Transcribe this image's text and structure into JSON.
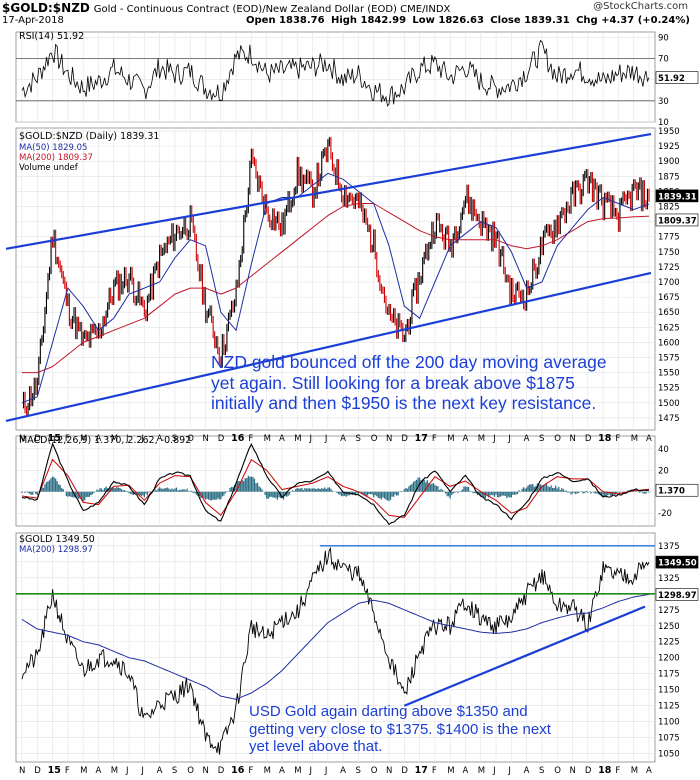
{
  "header": {
    "symbol": "$GOLD:$NZD",
    "description": "Gold - Continuous Contract (EOD)/New Zealand Dollar (EOD) CME/INDX",
    "date": "17-Apr-2018",
    "open": "Open 1838.76",
    "high": "High 1842.99",
    "low": "Low 1826.63",
    "close": "Close 1839.31",
    "chg": "Chg +4.37 (+0.24%)",
    "credit": "@StockCharts.com"
  },
  "annotations": {
    "nzd_lines": [
      "NZD gold bounced off the 200 day moving average",
      "yet again. Still looking for a break above $1875",
      "initially and then $1950 is the next key resistance."
    ],
    "usd_lines": [
      "USD Gold again darting above $1350 and",
      "getting very close to $1375. $1400 is the next",
      "yet level above that."
    ]
  },
  "colors": {
    "price": "#000000",
    "up_bar": "#000000",
    "down_bar": "#cc0000",
    "ma50": "#1f2fa3",
    "ma200": "#c0182a",
    "ma200_usd": "#1f2fa3",
    "trendline": "#1b3fd6",
    "support_line": "#1e8a1e",
    "resistance_line": "#2a6fd6",
    "macd_line": "#000000",
    "macd_signal": "#cc0000",
    "macd_hist": "#2f6f86",
    "grid": "#e2e2e2"
  },
  "chart_data": [
    {
      "type": "line",
      "panel": "rsi",
      "legend": "RSI(14) 51.92",
      "current_value": 51.92,
      "yticks": [
        10,
        30,
        50,
        70,
        90
      ],
      "ylim": [
        10,
        95
      ],
      "reference_lines": [
        30,
        70
      ],
      "x": [
        "2014-11",
        "2014-12",
        "2015-01",
        "2015-02",
        "2015-03",
        "2015-04",
        "2015-05",
        "2015-06",
        "2015-07",
        "2015-08",
        "2015-09",
        "2015-10",
        "2015-11",
        "2015-12",
        "2016-01",
        "2016-02",
        "2016-03",
        "2016-04",
        "2016-05",
        "2016-06",
        "2016-07",
        "2016-08",
        "2016-09",
        "2016-10",
        "2016-11",
        "2016-12",
        "2017-01",
        "2017-02",
        "2017-03",
        "2017-04",
        "2017-05",
        "2017-06",
        "2017-07",
        "2017-08",
        "2017-09",
        "2017-10",
        "2017-11",
        "2017-12",
        "2018-01",
        "2018-02",
        "2018-03",
        "2018-04"
      ],
      "values": [
        40,
        52,
        78,
        55,
        42,
        48,
        60,
        50,
        40,
        62,
        55,
        58,
        42,
        38,
        72,
        75,
        55,
        58,
        60,
        62,
        66,
        50,
        55,
        40,
        35,
        42,
        60,
        65,
        52,
        62,
        48,
        42,
        45,
        58,
        78,
        52,
        60,
        55,
        48,
        56,
        58,
        52
      ]
    },
    {
      "type": "line",
      "panel": "nzd_price",
      "legend": [
        "$GOLD:$NZD (Daily) 1839.31",
        "MA(50) 1829.05",
        "MA(200) 1809.37",
        "Volume undef"
      ],
      "ylim": [
        1455,
        1955
      ],
      "yticks": [
        1475,
        1500,
        1525,
        1550,
        1575,
        1600,
        1625,
        1650,
        1675,
        1700,
        1725,
        1750,
        1775,
        1800,
        1825,
        1850,
        1875,
        1900,
        1925,
        1950
      ],
      "last_price_label": "1839.31",
      "ma200_label": "1809.37",
      "x": [
        "2014-11",
        "2014-12",
        "2015-01",
        "2015-02",
        "2015-03",
        "2015-04",
        "2015-05",
        "2015-06",
        "2015-07",
        "2015-08",
        "2015-09",
        "2015-10",
        "2015-11",
        "2015-12",
        "2016-01",
        "2016-02",
        "2016-03",
        "2016-04",
        "2016-05",
        "2016-06",
        "2016-07",
        "2016-08",
        "2016-09",
        "2016-10",
        "2016-11",
        "2016-12",
        "2017-01",
        "2017-02",
        "2017-03",
        "2017-04",
        "2017-05",
        "2017-06",
        "2017-07",
        "2017-08",
        "2017-09",
        "2017-10",
        "2017-11",
        "2017-12",
        "2018-01",
        "2018-02",
        "2018-03",
        "2018-04"
      ],
      "series": [
        {
          "name": "$GOLD:$NZD",
          "values": [
            1490,
            1530,
            1780,
            1660,
            1600,
            1615,
            1690,
            1710,
            1650,
            1740,
            1780,
            1800,
            1660,
            1580,
            1680,
            1900,
            1820,
            1790,
            1880,
            1850,
            1920,
            1850,
            1830,
            1760,
            1640,
            1610,
            1710,
            1800,
            1760,
            1840,
            1800,
            1770,
            1680,
            1680,
            1760,
            1800,
            1840,
            1870,
            1830,
            1810,
            1850,
            1839
          ]
        },
        {
          "name": "MA(50)",
          "values": [
            1500,
            1510,
            1600,
            1690,
            1660,
            1620,
            1640,
            1680,
            1690,
            1700,
            1740,
            1770,
            1760,
            1650,
            1620,
            1730,
            1830,
            1840,
            1840,
            1860,
            1880,
            1870,
            1850,
            1830,
            1760,
            1660,
            1640,
            1700,
            1760,
            1780,
            1800,
            1790,
            1750,
            1690,
            1700,
            1760,
            1790,
            1820,
            1840,
            1830,
            1820,
            1829
          ]
        },
        {
          "name": "MA(200)",
          "values": [
            1550,
            1550,
            1560,
            1580,
            1600,
            1610,
            1620,
            1630,
            1640,
            1660,
            1680,
            1690,
            1690,
            1680,
            1690,
            1710,
            1730,
            1750,
            1770,
            1790,
            1810,
            1825,
            1830,
            1830,
            1815,
            1800,
            1785,
            1775,
            1770,
            1770,
            1770,
            1770,
            1760,
            1755,
            1760,
            1770,
            1785,
            1800,
            1805,
            1806,
            1808,
            1809
          ]
        }
      ],
      "trendlines": [
        {
          "points": [
            [
              "2014-11",
              1755
            ],
            [
              "2018-04",
              1945
            ]
          ]
        },
        {
          "points": [
            [
              "2014-11",
              1470
            ],
            [
              "2018-04",
              1715
            ]
          ]
        }
      ]
    },
    {
      "type": "line",
      "panel": "macd",
      "legend": "MACD(12,26,9) 1.370, 2.262, -0.892",
      "yticks": [
        -20,
        0,
        20,
        40
      ],
      "ylim": [
        -32,
        52
      ],
      "current_label": "1.370",
      "x": [
        "2014-11",
        "2014-12",
        "2015-01",
        "2015-02",
        "2015-03",
        "2015-04",
        "2015-05",
        "2015-06",
        "2015-07",
        "2015-08",
        "2015-09",
        "2015-10",
        "2015-11",
        "2015-12",
        "2016-01",
        "2016-02",
        "2016-03",
        "2016-04",
        "2016-05",
        "2016-06",
        "2016-07",
        "2016-08",
        "2016-09",
        "2016-10",
        "2016-11",
        "2016-12",
        "2017-01",
        "2017-02",
        "2017-03",
        "2017-04",
        "2017-05",
        "2017-06",
        "2017-07",
        "2017-08",
        "2017-09",
        "2017-10",
        "2017-11",
        "2017-12",
        "2018-01",
        "2018-02",
        "2018-03",
        "2018-04"
      ],
      "series": [
        {
          "name": "MACD",
          "values": [
            -5,
            -8,
            45,
            10,
            -18,
            -10,
            10,
            5,
            -12,
            12,
            18,
            15,
            -18,
            -28,
            8,
            45,
            15,
            -5,
            8,
            10,
            18,
            0,
            -2,
            -12,
            -30,
            -22,
            8,
            20,
            0,
            15,
            -5,
            -12,
            -25,
            -10,
            12,
            18,
            10,
            12,
            -5,
            -3,
            2,
            1.37
          ]
        },
        {
          "name": "Signal",
          "values": [
            -4,
            -6,
            30,
            15,
            -10,
            -12,
            5,
            6,
            -8,
            8,
            15,
            14,
            -10,
            -22,
            0,
            30,
            20,
            2,
            5,
            8,
            14,
            5,
            0,
            -8,
            -22,
            -24,
            -5,
            14,
            5,
            10,
            0,
            -8,
            -20,
            -15,
            5,
            14,
            12,
            12,
            0,
            -2,
            1,
            2.262
          ]
        },
        {
          "name": "Histogram",
          "values": [
            -1,
            -2,
            15,
            -5,
            -8,
            2,
            5,
            -1,
            -4,
            4,
            3,
            1,
            -8,
            -6,
            8,
            15,
            -5,
            -7,
            3,
            2,
            4,
            -5,
            -2,
            -4,
            -8,
            2,
            13,
            6,
            -5,
            5,
            -5,
            -4,
            -5,
            5,
            7,
            4,
            -2,
            0,
            -5,
            -1,
            1,
            -0.892
          ]
        }
      ]
    },
    {
      "type": "line",
      "panel": "usd_price",
      "legend": [
        "$GOLD 1349.50",
        "MA(200) 1298.97"
      ],
      "ylim": [
        1037,
        1395
      ],
      "yticks": [
        1050,
        1075,
        1100,
        1125,
        1150,
        1175,
        1200,
        1225,
        1250,
        1275,
        1300,
        1325,
        1350,
        1375
      ],
      "last_price_label": "1349.50",
      "ma200_label": "1298.97",
      "x": [
        "2014-11",
        "2014-12",
        "2015-01",
        "2015-02",
        "2015-03",
        "2015-04",
        "2015-05",
        "2015-06",
        "2015-07",
        "2015-08",
        "2015-09",
        "2015-10",
        "2015-11",
        "2015-12",
        "2016-01",
        "2016-02",
        "2016-03",
        "2016-04",
        "2016-05",
        "2016-06",
        "2016-07",
        "2016-08",
        "2016-09",
        "2016-10",
        "2016-11",
        "2016-12",
        "2017-01",
        "2017-02",
        "2017-03",
        "2017-04",
        "2017-05",
        "2017-06",
        "2017-07",
        "2017-08",
        "2017-09",
        "2017-10",
        "2017-11",
        "2017-12",
        "2018-01",
        "2018-02",
        "2018-03",
        "2018-04"
      ],
      "series": [
        {
          "name": "$GOLD",
          "values": [
            1180,
            1200,
            1300,
            1225,
            1180,
            1200,
            1200,
            1175,
            1100,
            1130,
            1140,
            1160,
            1075,
            1060,
            1120,
            1250,
            1230,
            1260,
            1270,
            1320,
            1360,
            1340,
            1330,
            1270,
            1200,
            1140,
            1210,
            1250,
            1250,
            1290,
            1260,
            1250,
            1260,
            1300,
            1330,
            1280,
            1280,
            1250,
            1340,
            1330,
            1330,
            1349.5
          ]
        },
        {
          "name": "MA(200)",
          "values": [
            1260,
            1245,
            1240,
            1235,
            1225,
            1220,
            1210,
            1200,
            1195,
            1185,
            1175,
            1165,
            1155,
            1140,
            1135,
            1145,
            1160,
            1180,
            1205,
            1230,
            1255,
            1270,
            1285,
            1290,
            1285,
            1275,
            1265,
            1255,
            1250,
            1245,
            1240,
            1238,
            1240,
            1245,
            1255,
            1262,
            1268,
            1270,
            1278,
            1288,
            1295,
            1299
          ]
        }
      ],
      "horizontal_lines": [
        {
          "name": "support",
          "value": 1300
        },
        {
          "name": "resistance",
          "value": 1375,
          "from": "2016-07"
        }
      ],
      "trendlines": [
        {
          "points": [
            [
              "2016-12",
              1125
            ],
            [
              "2018-04",
              1280
            ]
          ]
        }
      ]
    }
  ],
  "x_axis_labels": [
    "N",
    "D",
    "15",
    "F",
    "M",
    "A",
    "M",
    "J",
    "J",
    "A",
    "S",
    "O",
    "N",
    "D",
    "16",
    "F",
    "M",
    "A",
    "M",
    "J",
    "J",
    "A",
    "S",
    "O",
    "N",
    "D",
    "17",
    "F",
    "M",
    "A",
    "M",
    "J",
    "J",
    "A",
    "S",
    "O",
    "N",
    "D",
    "18",
    "F",
    "M",
    "A"
  ]
}
